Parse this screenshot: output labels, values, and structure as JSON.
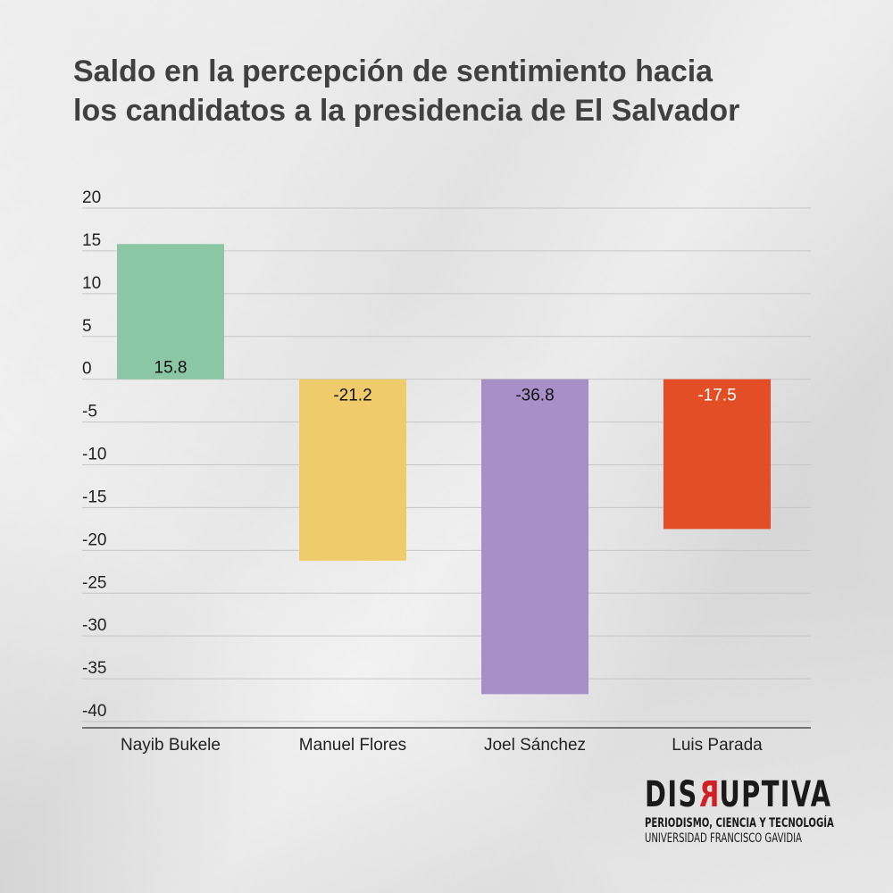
{
  "title_lines": [
    "Saldo en la percepción de sentimiento hacia",
    "los candidatos a la presidencia de El Salvador"
  ],
  "chart_data": {
    "type": "bar",
    "title": "Saldo en la percepción de sentimiento hacia los candidatos a la presidencia de El Salvador",
    "categories": [
      "Nayib Bukele",
      "Manuel Flores",
      "Joel Sánchez",
      "Luis Parada"
    ],
    "values": [
      15.8,
      -21.2,
      -36.8,
      -17.5
    ],
    "value_labels": [
      "15.8",
      "-21.2",
      "-36.8",
      "-17.5"
    ],
    "colors": [
      "#8cc7a5",
      "#efcb6b",
      "#a98fc8",
      "#e34e26"
    ],
    "label_colors": [
      "#111111",
      "#111111",
      "#111111",
      "#ffffff"
    ],
    "yticks": [
      "20",
      "15",
      "10",
      "5",
      "0",
      "-5",
      "-10",
      "-15",
      "-20",
      "-25",
      "-30",
      "-35",
      "-40"
    ],
    "ylim": [
      -40,
      20
    ],
    "grid": true,
    "xlabel": "",
    "ylabel": ""
  },
  "logo": {
    "word_before": "DIS",
    "word_r": "R",
    "word_after": "UPTIVA",
    "line1": "PERIODISMO, CIENCIA Y TECNOLOGÍA",
    "line2": "UNIVERSIDAD FRANCISCO GAVIDIA",
    "accent": "#d21f26"
  }
}
